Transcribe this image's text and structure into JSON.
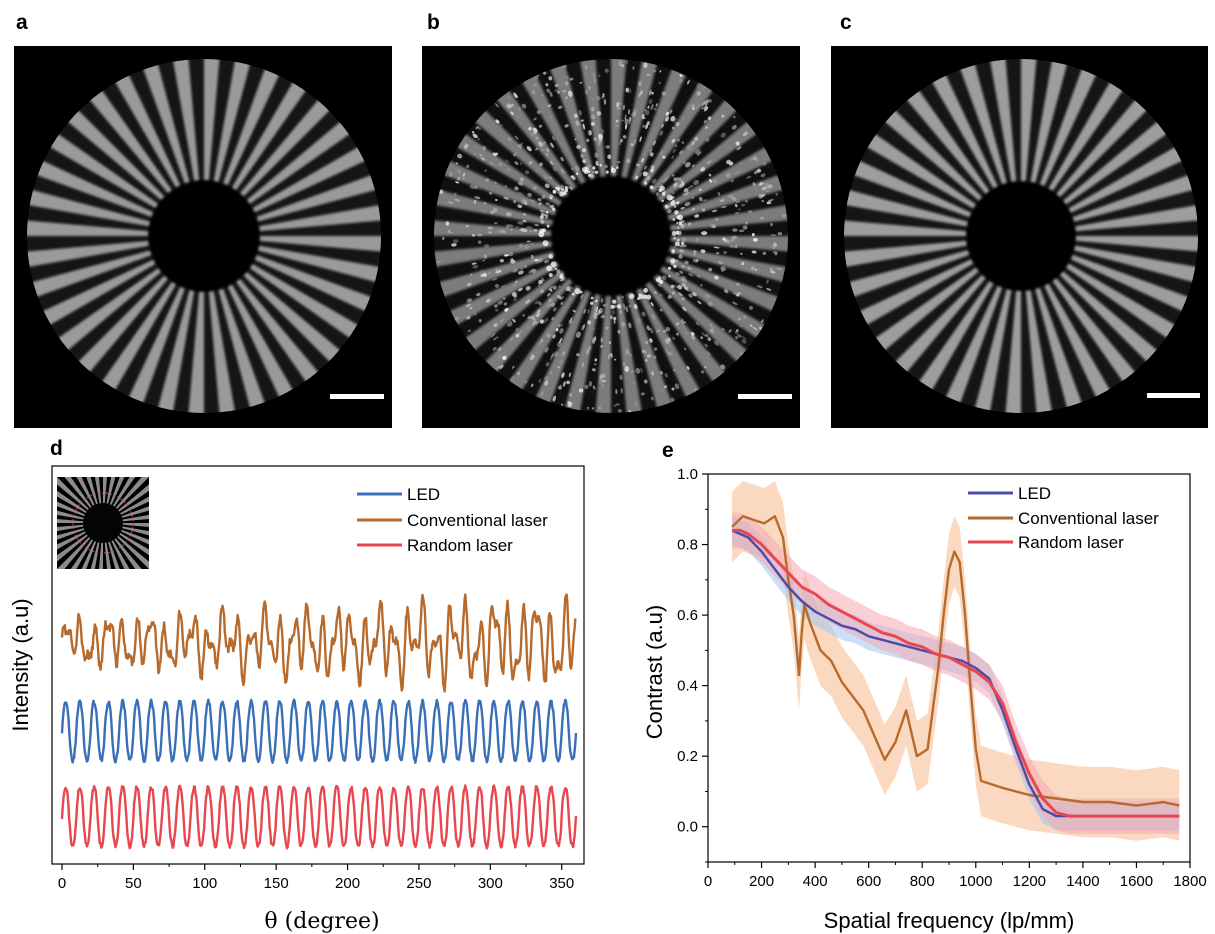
{
  "figure": {
    "panels": [
      {
        "label": "a",
        "kind": "star_target",
        "style": "clean"
      },
      {
        "label": "b",
        "kind": "star_target",
        "style": "speckled"
      },
      {
        "label": "c",
        "kind": "star_target",
        "style": "clean"
      },
      {
        "label": "d",
        "kind": "chart"
      },
      {
        "label": "e",
        "kind": "chart"
      }
    ]
  },
  "colors": {
    "led": "#3a6fb8",
    "conventional": "#b66a2c",
    "random": "#e8474f",
    "led_band": "#9fc6ee",
    "conventional_band": "#f6b98c",
    "random_band": "#f5a7b3",
    "led_line_e": "#4a4aa8"
  },
  "chart_data": [
    {
      "type": "line",
      "panel": "d",
      "xlabel": "θ (degree)",
      "ylabel": "Intensity (a.u)",
      "xlim": [
        0,
        360
      ],
      "x_ticks": [
        0,
        50,
        100,
        150,
        200,
        250,
        300,
        350
      ],
      "y_ticks_shown": false,
      "legend": {
        "placement": "top-right",
        "entries": [
          "LED",
          "Conventional laser",
          "Random laser"
        ]
      },
      "has_inset": true,
      "series": [
        {
          "name": "Conventional laser",
          "periods_over_range": 36,
          "offset": 0.72,
          "amplitude": 0.12,
          "pattern": "irregular"
        },
        {
          "name": "LED",
          "periods_over_range": 36,
          "offset": 0.42,
          "amplitude": 0.1,
          "pattern": "regular"
        },
        {
          "name": "Random laser",
          "periods_over_range": 36,
          "offset": 0.13,
          "amplitude": 0.1,
          "pattern": "regular"
        }
      ]
    },
    {
      "type": "line",
      "panel": "e",
      "xlabel": "Spatial frequency (lp/mm)",
      "ylabel": "Contrast (a.u)",
      "xlim": [
        0,
        1800
      ],
      "ylim": [
        -0.1,
        1.0
      ],
      "x_ticks": [
        0,
        200,
        400,
        600,
        800,
        1000,
        1200,
        1400,
        1600,
        1800
      ],
      "y_ticks": [
        0.0,
        0.2,
        0.4,
        0.6,
        0.8,
        1.0
      ],
      "y_tick_labels": [
        "0.0",
        "0.2",
        "0.4",
        "0.6",
        "0.8",
        "1.0"
      ],
      "legend": {
        "placement": "top-right",
        "entries": [
          "LED",
          "Conventional laser",
          "Random laser"
        ]
      },
      "series": [
        {
          "name": "LED",
          "x": [
            90,
            150,
            200,
            250,
            300,
            350,
            400,
            450,
            500,
            550,
            600,
            650,
            700,
            750,
            800,
            850,
            900,
            950,
            1000,
            1050,
            1100,
            1150,
            1200,
            1250,
            1300,
            1400,
            1500,
            1600,
            1760
          ],
          "y": [
            0.84,
            0.82,
            0.78,
            0.73,
            0.68,
            0.64,
            0.61,
            0.59,
            0.57,
            0.56,
            0.54,
            0.53,
            0.52,
            0.51,
            0.5,
            0.49,
            0.48,
            0.47,
            0.45,
            0.42,
            0.33,
            0.22,
            0.12,
            0.05,
            0.03,
            0.03,
            0.03,
            0.03,
            0.03
          ],
          "band": 0.04
        },
        {
          "name": "Conventional laser",
          "x": [
            90,
            130,
            170,
            210,
            250,
            280,
            300,
            320,
            340,
            350,
            360,
            380,
            420,
            460,
            500,
            540,
            580,
            620,
            660,
            700,
            740,
            780,
            820,
            860,
            880,
            900,
            920,
            940,
            960,
            980,
            1000,
            1020,
            1060,
            1100,
            1200,
            1300,
            1400,
            1500,
            1600,
            1700,
            1760
          ],
          "y": [
            0.85,
            0.88,
            0.87,
            0.86,
            0.88,
            0.82,
            0.7,
            0.6,
            0.43,
            0.55,
            0.63,
            0.58,
            0.5,
            0.47,
            0.41,
            0.37,
            0.33,
            0.26,
            0.19,
            0.24,
            0.33,
            0.2,
            0.22,
            0.45,
            0.6,
            0.73,
            0.78,
            0.75,
            0.6,
            0.4,
            0.22,
            0.13,
            0.12,
            0.11,
            0.09,
            0.08,
            0.07,
            0.07,
            0.06,
            0.07,
            0.06
          ],
          "band": 0.1
        },
        {
          "name": "Random laser",
          "x": [
            90,
            120,
            150,
            200,
            250,
            300,
            350,
            400,
            450,
            500,
            550,
            600,
            650,
            700,
            750,
            800,
            850,
            900,
            950,
            1000,
            1050,
            1100,
            1150,
            1200,
            1250,
            1300,
            1350,
            1400,
            1500,
            1600,
            1700,
            1760
          ],
          "y": [
            0.84,
            0.84,
            0.83,
            0.8,
            0.76,
            0.72,
            0.68,
            0.66,
            0.63,
            0.61,
            0.59,
            0.57,
            0.55,
            0.54,
            0.52,
            0.51,
            0.49,
            0.48,
            0.46,
            0.44,
            0.41,
            0.35,
            0.24,
            0.15,
            0.08,
            0.04,
            0.03,
            0.03,
            0.03,
            0.03,
            0.03,
            0.03
          ],
          "band": 0.05
        }
      ]
    }
  ]
}
